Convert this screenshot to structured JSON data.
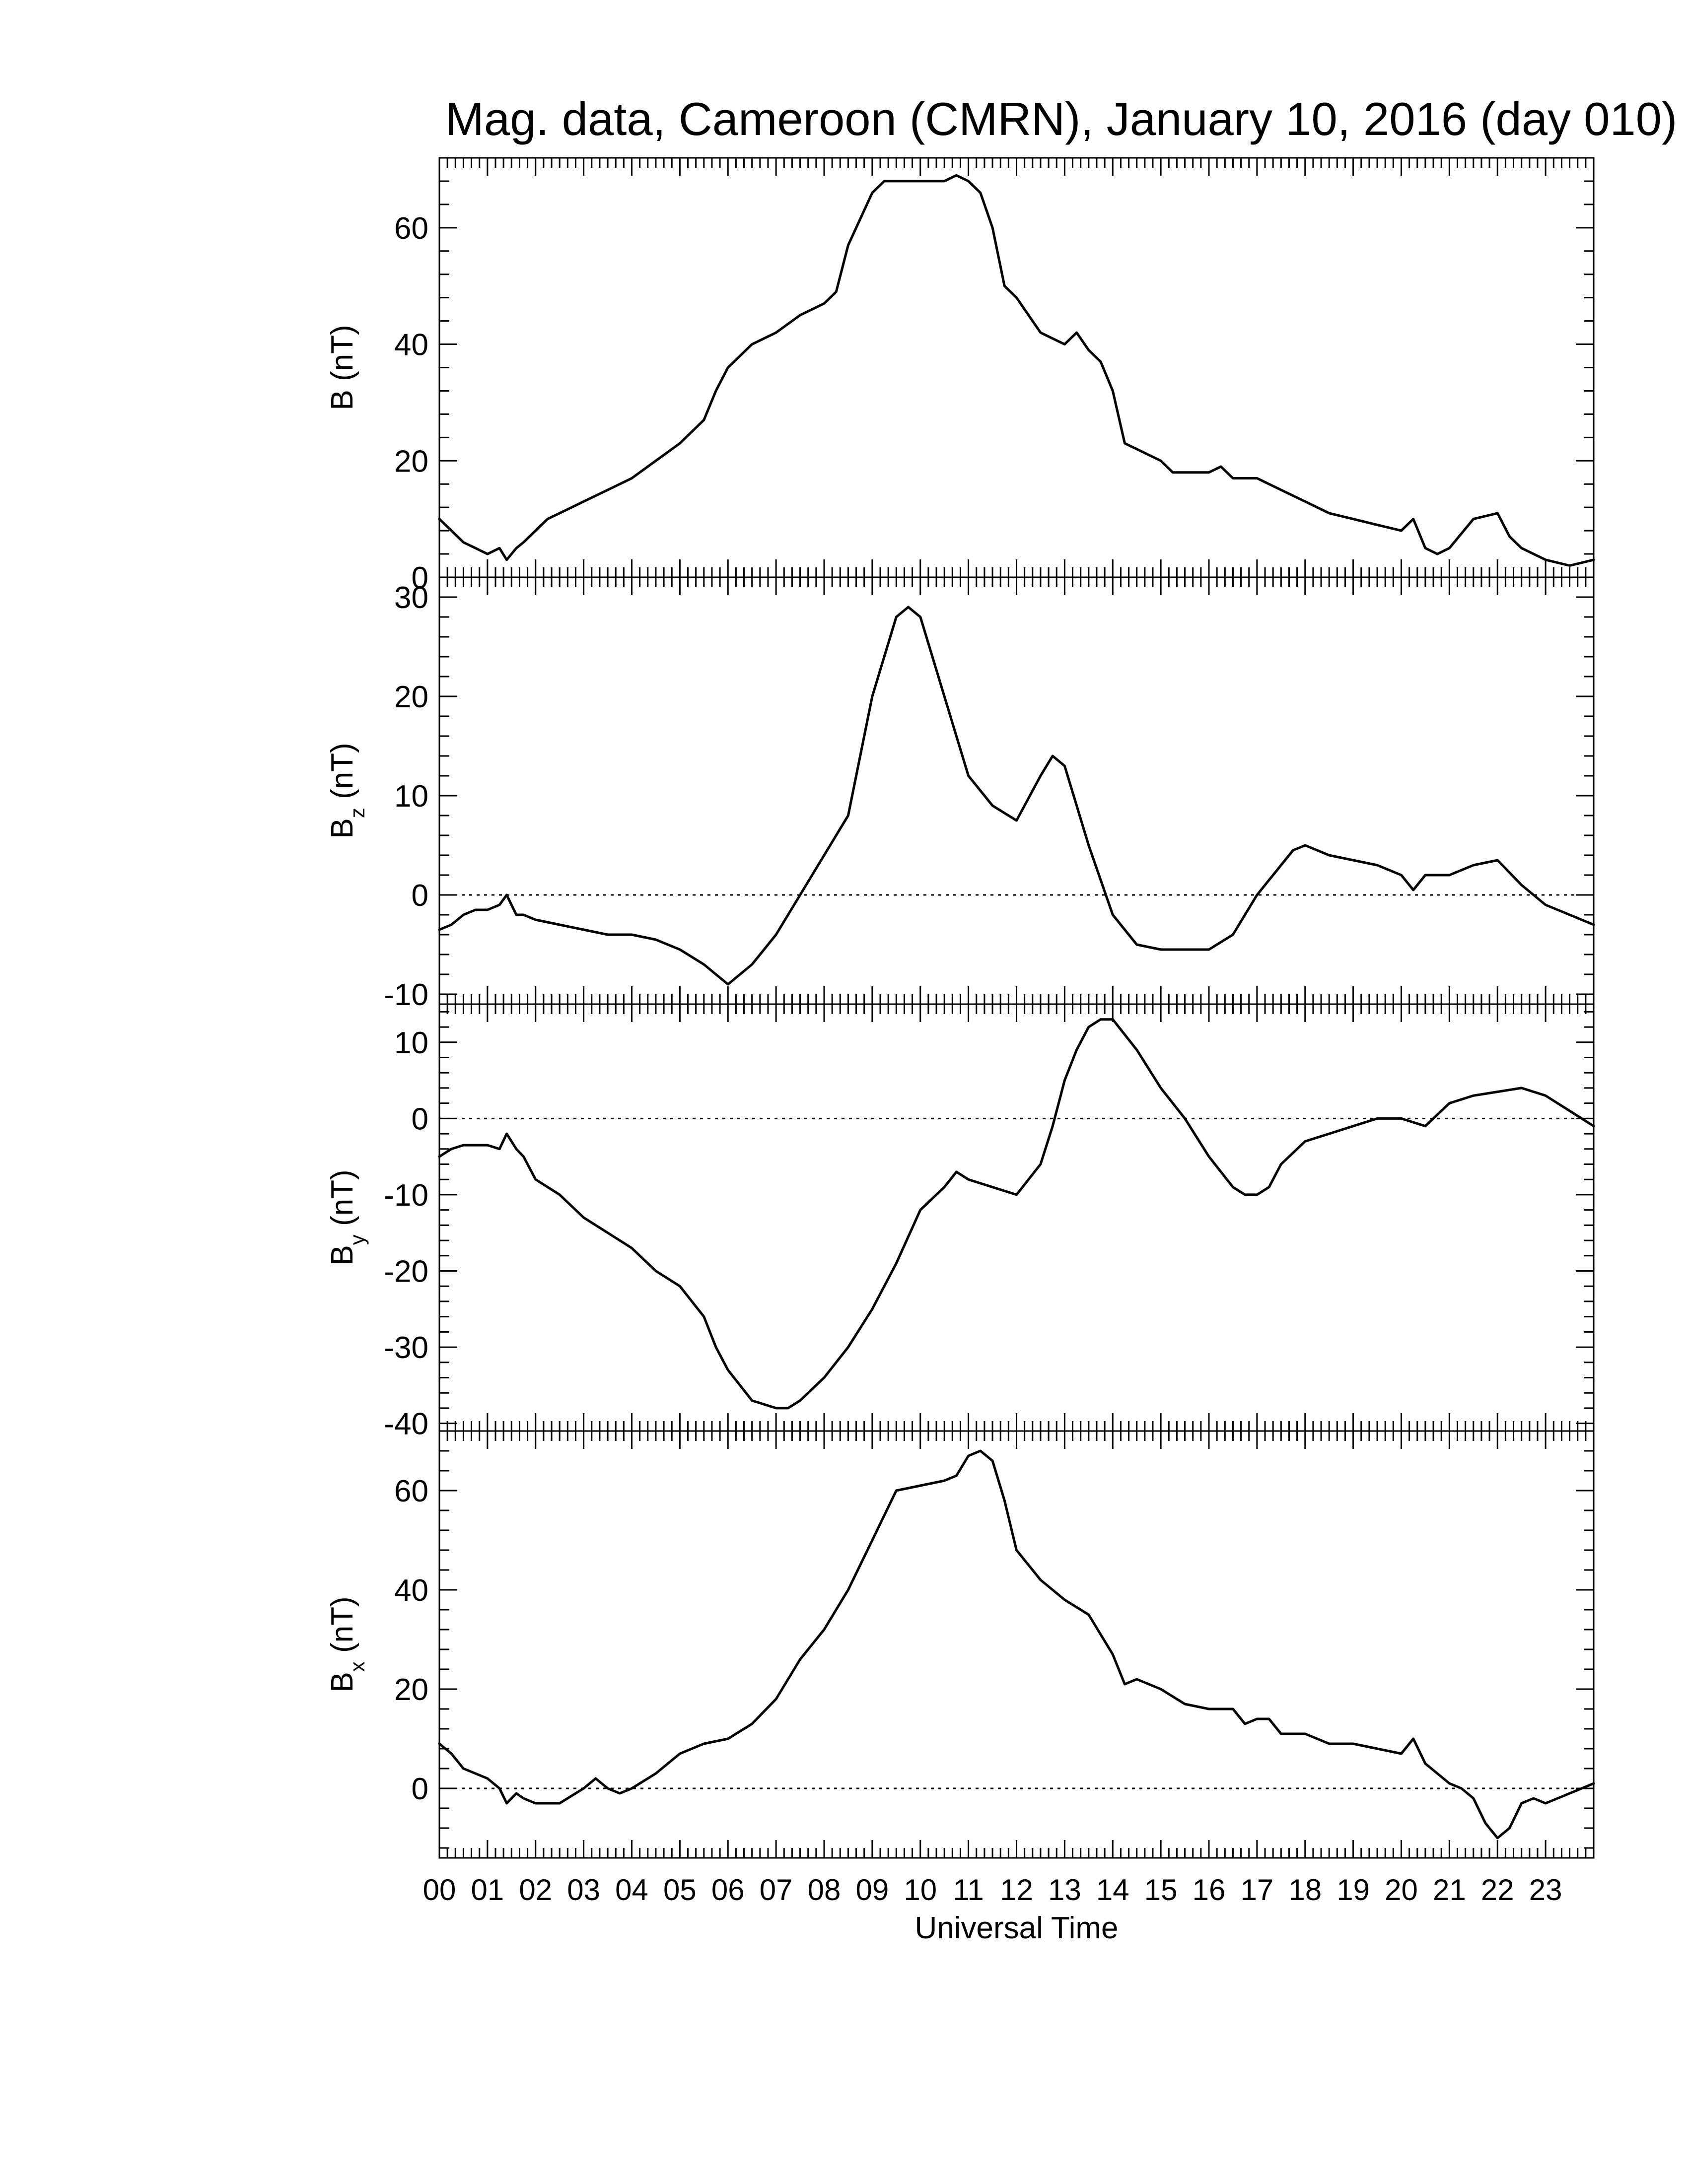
{
  "chart_data": {
    "type": "line",
    "title": "Mag. data, Cameroon (CMRN), January 10, 2016 (day 010)",
    "xlabel": "Universal Time",
    "x_tick_labels": [
      "00",
      "01",
      "02",
      "03",
      "04",
      "05",
      "06",
      "07",
      "08",
      "09",
      "10",
      "11",
      "12",
      "13",
      "14",
      "15",
      "16",
      "17",
      "18",
      "19",
      "20",
      "21",
      "22",
      "23"
    ],
    "xlim": [
      0,
      24
    ],
    "panels": [
      {
        "label_main": "B",
        "label_sub": "",
        "label_unit": " (nT)",
        "ylim": [
          0,
          72
        ],
        "yticks": [
          0,
          20,
          40,
          60
        ],
        "zero_line": false,
        "x": [
          0,
          0.25,
          0.5,
          0.75,
          1,
          1.25,
          1.4,
          1.6,
          1.75,
          2,
          2.25,
          2.5,
          3,
          3.5,
          4,
          4.5,
          5,
          5.5,
          5.75,
          6,
          6.5,
          7,
          7.5,
          8,
          8.25,
          8.5,
          9,
          9.25,
          9.5,
          10,
          10.5,
          10.75,
          11,
          11.25,
          11.5,
          11.75,
          12,
          12.25,
          12.5,
          13,
          13.25,
          13.5,
          13.75,
          14,
          14.25,
          14.5,
          15,
          15.25,
          15.5,
          16,
          16.25,
          16.5,
          17,
          17.25,
          17.5,
          18,
          18.5,
          19,
          19.5,
          20,
          20.25,
          20.5,
          20.75,
          21,
          21.5,
          22,
          22.25,
          22.5,
          23,
          23.5,
          24
        ],
        "y": [
          10,
          8,
          6,
          5,
          4,
          5,
          3,
          5,
          6,
          8,
          10,
          11,
          13,
          15,
          17,
          20,
          23,
          27,
          32,
          36,
          40,
          42,
          45,
          47,
          49,
          57,
          66,
          68,
          68,
          68,
          68,
          69,
          68,
          66,
          60,
          50,
          48,
          45,
          42,
          40,
          42,
          39,
          37,
          32,
          23,
          22,
          20,
          18,
          18,
          18,
          19,
          17,
          17,
          16,
          15,
          13,
          11,
          10,
          9,
          8,
          10,
          5,
          4,
          5,
          10,
          11,
          7,
          5,
          3,
          2,
          3
        ]
      },
      {
        "label_main": "B",
        "label_sub": "z",
        "label_unit": " (nT)",
        "ylim": [
          -11,
          32
        ],
        "yticks": [
          -10,
          0,
          10,
          20,
          30
        ],
        "zero_line": true,
        "x": [
          0,
          0.25,
          0.5,
          0.75,
          1,
          1.25,
          1.4,
          1.6,
          1.75,
          2,
          2.5,
          3,
          3.5,
          4,
          4.5,
          5,
          5.5,
          5.75,
          6,
          6.5,
          7,
          7.5,
          7.75,
          8,
          8.5,
          9,
          9.5,
          9.75,
          10,
          10.5,
          11,
          11.5,
          12,
          12.5,
          12.75,
          13,
          13.5,
          14,
          14.5,
          15,
          15.5,
          16,
          16.5,
          17,
          17.5,
          17.75,
          18,
          18.5,
          19,
          19.5,
          20,
          20.25,
          20.5,
          21,
          21.5,
          22,
          22.5,
          23,
          23.5,
          24
        ],
        "y": [
          -3.5,
          -3,
          -2,
          -1.5,
          -1.5,
          -1,
          0,
          -2,
          -2,
          -2.5,
          -3,
          -3.5,
          -4,
          -4,
          -4.5,
          -5.5,
          -7,
          -8,
          -9,
          -7,
          -4,
          0,
          2,
          4,
          8,
          20,
          28,
          29,
          28,
          20,
          12,
          9,
          7.5,
          12,
          14,
          13,
          5,
          -2,
          -5,
          -5.5,
          -5.5,
          -5.5,
          -4,
          0,
          3,
          4.5,
          5,
          4,
          3.5,
          3,
          2,
          0.5,
          2,
          2,
          3,
          3.5,
          1,
          -1,
          -2,
          -3
        ]
      },
      {
        "label_main": "B",
        "label_sub": "y",
        "label_unit": " (nT)",
        "ylim": [
          -41,
          15
        ],
        "yticks": [
          -40,
          -30,
          -20,
          -10,
          0,
          10
        ],
        "zero_line": true,
        "x": [
          0,
          0.25,
          0.5,
          0.75,
          1,
          1.25,
          1.4,
          1.6,
          1.75,
          2,
          2.5,
          3,
          3.5,
          4,
          4.5,
          5,
          5.5,
          5.75,
          6,
          6.5,
          7,
          7.25,
          7.5,
          8,
          8.5,
          9,
          9.5,
          10,
          10.5,
          10.75,
          11,
          11.5,
          12,
          12.5,
          12.75,
          13,
          13.25,
          13.5,
          13.75,
          14,
          14.5,
          15,
          15.5,
          16,
          16.5,
          16.75,
          17,
          17.25,
          17.5,
          18,
          18.5,
          19,
          19.5,
          20,
          20.5,
          21,
          21.5,
          22,
          22.5,
          23,
          23.5,
          24
        ],
        "y": [
          -5,
          -4,
          -3.5,
          -3.5,
          -3.5,
          -4,
          -2,
          -4,
          -5,
          -8,
          -10,
          -13,
          -15,
          -17,
          -20,
          -22,
          -26,
          -30,
          -33,
          -37,
          -38,
          -38,
          -37,
          -34,
          -30,
          -25,
          -19,
          -12,
          -9,
          -7,
          -8,
          -9,
          -10,
          -6,
          -1,
          5,
          9,
          12,
          13,
          13,
          9,
          4,
          0,
          -5,
          -9,
          -10,
          -10,
          -9,
          -6,
          -3,
          -2,
          -1,
          0,
          0,
          -1,
          2,
          3,
          3.5,
          4,
          3,
          1,
          -1
        ]
      },
      {
        "label_main": "B",
        "label_sub": "x",
        "label_unit": " (nT)",
        "ylim": [
          -14,
          72
        ],
        "yticks": [
          0,
          20,
          40,
          60
        ],
        "zero_line": true,
        "x": [
          0,
          0.25,
          0.5,
          0.75,
          1,
          1.25,
          1.4,
          1.6,
          1.75,
          2,
          2.5,
          3,
          3.25,
          3.5,
          3.75,
          4,
          4.5,
          5,
          5.5,
          6,
          6.5,
          7,
          7.5,
          8,
          8.5,
          9,
          9.5,
          10,
          10.5,
          10.75,
          11,
          11.25,
          11.5,
          11.75,
          12,
          12.5,
          13,
          13.5,
          14,
          14.25,
          14.5,
          15,
          15.5,
          16,
          16.5,
          16.75,
          17,
          17.25,
          17.5,
          18,
          18.5,
          19,
          19.5,
          20,
          20.25,
          20.5,
          20.75,
          21,
          21.25,
          21.5,
          21.75,
          22,
          22.25,
          22.5,
          22.75,
          23,
          23.5,
          24
        ],
        "y": [
          9,
          7,
          4,
          3,
          2,
          0,
          -3,
          -1,
          -2,
          -3,
          -3,
          0,
          2,
          0,
          -1,
          0,
          3,
          7,
          9,
          10,
          13,
          18,
          26,
          32,
          40,
          50,
          60,
          61,
          62,
          63,
          67,
          68,
          66,
          58,
          48,
          42,
          38,
          35,
          27,
          21,
          22,
          20,
          17,
          16,
          16,
          13,
          14,
          14,
          11,
          11,
          9,
          9,
          8,
          7,
          10,
          5,
          3,
          1,
          0,
          -2,
          -7,
          -10,
          -8,
          -3,
          -2,
          -3,
          -1,
          1
        ]
      }
    ]
  }
}
